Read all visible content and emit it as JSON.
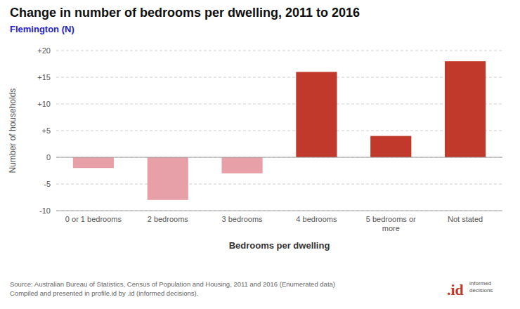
{
  "chart_data": {
    "type": "bar",
    "title": "Change in number of bedrooms per dwelling, 2011 to 2016",
    "subtitle": "Flemington (N)",
    "categories": [
      "0 or 1 bedrooms",
      "2 bedrooms",
      "3 bedrooms",
      "4 bedrooms",
      "5 bedrooms or\nmore",
      "Not stated"
    ],
    "values": [
      -2,
      -8,
      -3,
      16,
      4,
      18
    ],
    "colors": [
      "#e8a0a8",
      "#e8a0a8",
      "#e8a0a8",
      "#c0392b",
      "#c0392b",
      "#c0392b"
    ],
    "x_label": "Bedrooms per dwelling",
    "y_label": "Number of households",
    "ylim": [
      -10,
      20
    ],
    "yticks": [
      -10,
      -5,
      0,
      {
        "value": 5,
        "label": "+5"
      },
      {
        "value": 10,
        "label": "+10"
      },
      {
        "value": 15,
        "label": "+15"
      },
      {
        "value": 20,
        "label": "+20"
      }
    ],
    "grid": true,
    "annotations": [
      "Source: Australian Bureau of Statistics, Census of Population and Housing, 2011 and 2016 (Enumerated data)\nCompiled and presented in profile.id by .id (informed decisions).",
      ".id",
      "informed\ndecisions"
    ]
  }
}
